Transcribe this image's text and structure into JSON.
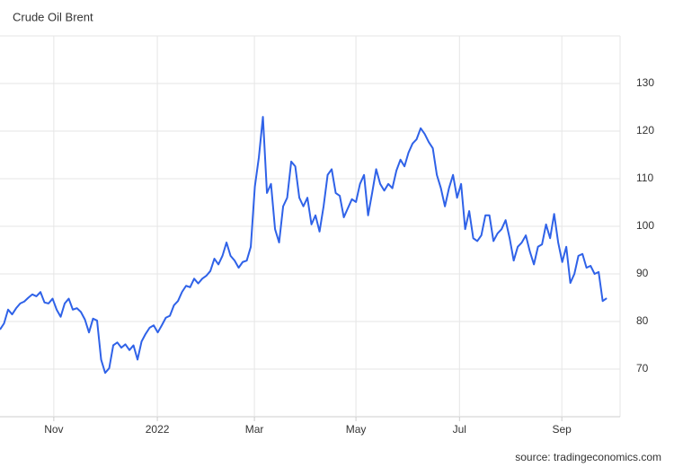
{
  "chart_data": {
    "type": "line",
    "title": "Crude Oil Brent",
    "source": "source: tradingeconomics.com",
    "series": [
      {
        "name": "Crude Oil Brent",
        "color": "#2f62e8",
        "values": [
          78.3,
          79.6,
          82.5,
          81.5,
          82.8,
          83.8,
          84.2,
          85,
          85.7,
          85.3,
          86.2,
          84,
          83.8,
          84.8,
          82.5,
          81,
          83.8,
          84.8,
          82.5,
          82.8,
          82,
          80.4,
          77.7,
          80.6,
          80.2,
          72,
          69.2,
          70.2,
          75,
          75.6,
          74.5,
          75.2,
          74,
          75,
          72,
          75.8,
          77.4,
          78.7,
          79.2,
          77.7,
          79.2,
          80.8,
          81.2,
          83.4,
          84.3,
          86.2,
          87.5,
          87.2,
          89,
          88,
          89,
          89.6,
          90.6,
          93.2,
          92,
          93.8,
          96.6,
          93.8,
          92.8,
          91.3,
          92.5,
          92.8,
          95.7,
          108.3,
          114.5,
          123,
          107,
          108.9,
          99.4,
          96.6,
          104.2,
          106,
          113.6,
          112.6,
          106,
          104.2,
          106,
          100.4,
          102.3,
          98.9,
          104.2,
          110.8,
          112,
          107,
          106.4,
          101.9,
          103.8,
          105.7,
          105.1,
          108.9,
          110.8,
          102.3,
          107,
          112,
          108.9,
          107.5,
          108.9,
          108,
          111.7,
          114,
          112.6,
          115.5,
          117.4,
          118.3,
          120.6,
          119.4,
          117.7,
          116.4,
          110.8,
          108,
          104.2,
          108,
          110.8,
          106,
          108.9,
          99.4,
          103.2,
          97.5,
          96.9,
          98.1,
          102.3,
          102.3,
          96.9,
          98.5,
          99.4,
          101.3,
          97.5,
          92.8,
          95.7,
          96.6,
          98.1,
          94.7,
          92,
          95.7,
          96.2,
          100.4,
          97.5,
          102.6,
          96.6,
          92.5,
          95.7,
          88.1,
          90,
          93.8,
          94.2,
          91.3,
          91.7,
          90,
          90.4,
          84.3,
          84.9
        ]
      }
    ],
    "xlim": [
      0,
      153.3
    ],
    "xticks": [
      {
        "value": 13.3,
        "label": "Nov"
      },
      {
        "value": 38.9,
        "label": "2022"
      },
      {
        "value": 62.9,
        "label": "Mar"
      },
      {
        "value": 88,
        "label": "May"
      },
      {
        "value": 113.6,
        "label": "Jul"
      },
      {
        "value": 138.9,
        "label": "Sep"
      }
    ],
    "ylim": [
      60,
      140
    ],
    "yticks": [
      70,
      80,
      90,
      100,
      110,
      120,
      130
    ],
    "grid": true
  }
}
